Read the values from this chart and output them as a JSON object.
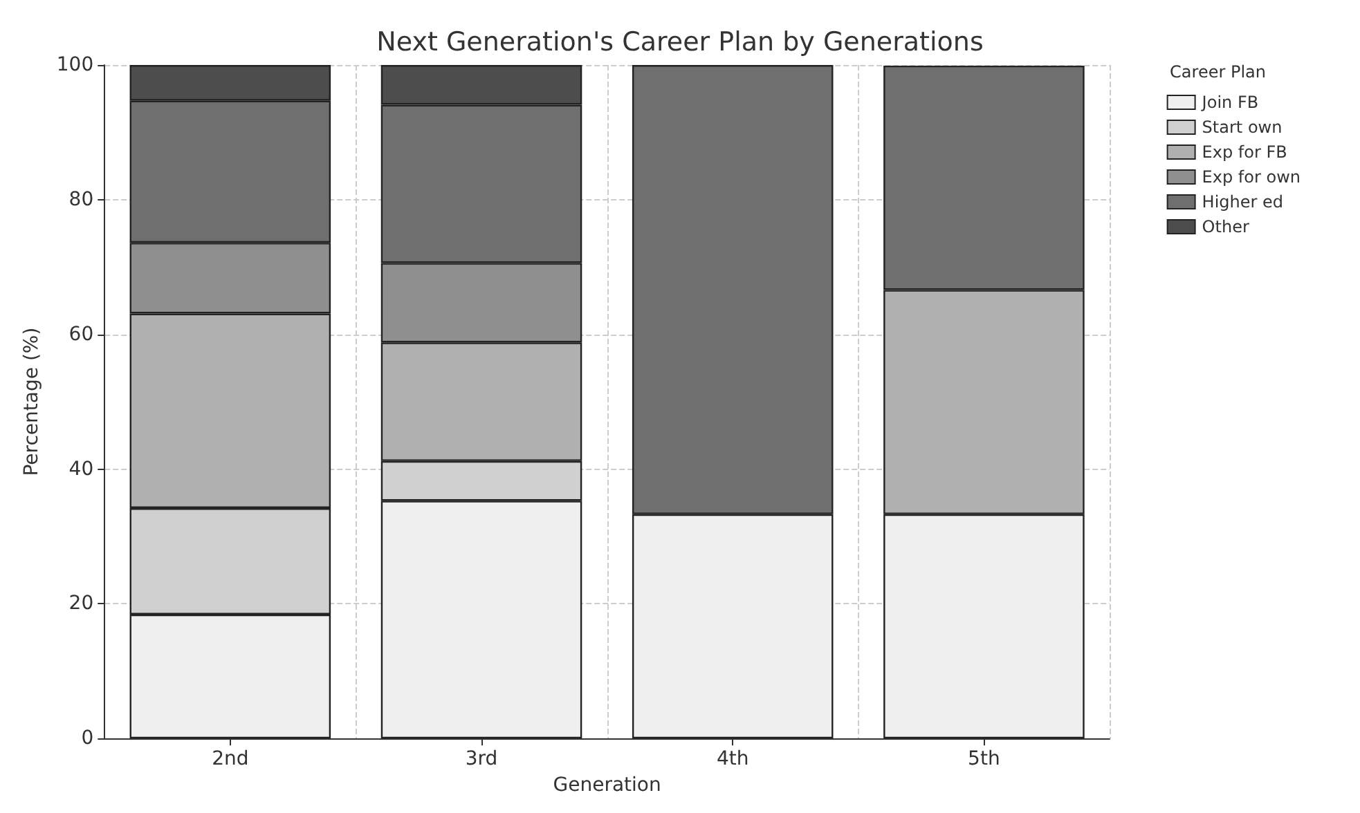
{
  "chart_data": {
    "type": "bar",
    "stacked": true,
    "title": "Next Generation's Career Plan by Generations",
    "xlabel": "Generation",
    "ylabel": "Percentage (%)",
    "legend_title": "Career Plan",
    "categories": [
      "2nd",
      "3rd",
      "4th",
      "5th"
    ],
    "series": [
      {
        "name": "Join FB",
        "color": "#efefef",
        "values": [
          18.4,
          35.3,
          33.3,
          33.3
        ]
      },
      {
        "name": "Start own",
        "color": "#d0d0d0",
        "values": [
          15.8,
          5.9,
          0,
          0
        ]
      },
      {
        "name": "Exp for FB",
        "color": "#b0b0b0",
        "values": [
          28.9,
          17.6,
          0,
          33.3
        ]
      },
      {
        "name": "Exp for own",
        "color": "#8f8f8f",
        "values": [
          10.5,
          11.8,
          0,
          0
        ]
      },
      {
        "name": "Higher ed",
        "color": "#6f6f6f",
        "values": [
          21.1,
          23.5,
          66.7,
          33.3
        ]
      },
      {
        "name": "Other",
        "color": "#4d4d4d",
        "values": [
          5.3,
          5.9,
          0,
          0
        ]
      }
    ],
    "ylim": [
      0,
      100
    ],
    "yticks": [
      0,
      20,
      40,
      60,
      80,
      100
    ],
    "grid": true,
    "legend": "top right"
  }
}
